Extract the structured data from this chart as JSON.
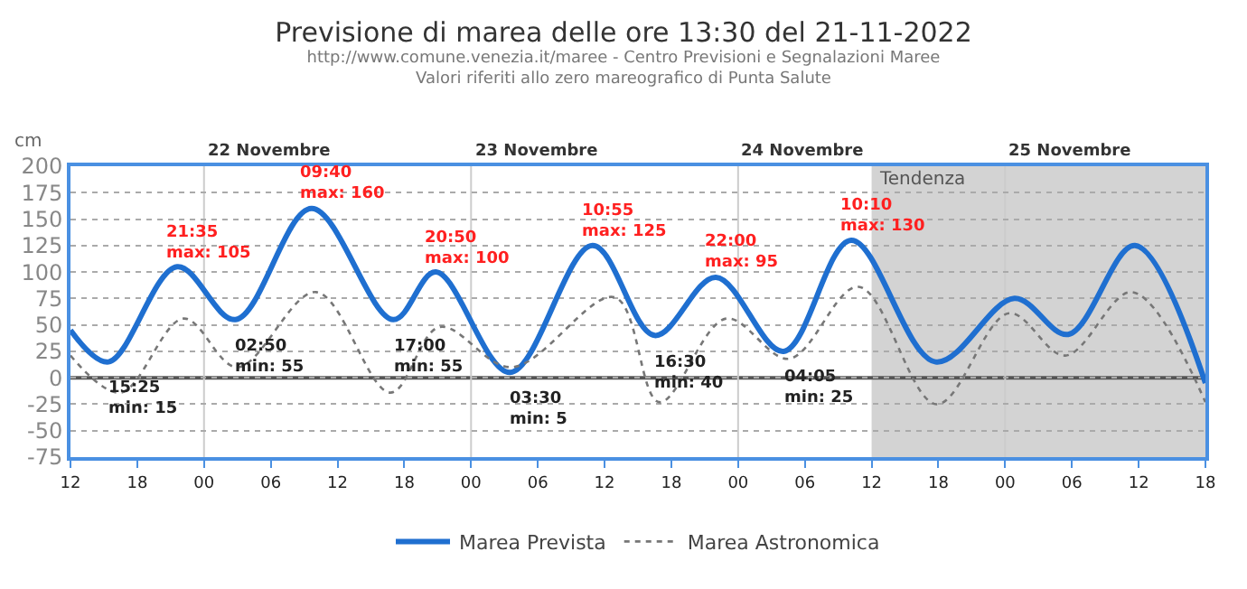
{
  "chart_data": {
    "type": "line",
    "title": "Previsione di marea delle ore 13:30 del 21-11-2022",
    "subtitle": "http://www.comune.venezia.it/maree - Centro Previsioni e Segnalazioni Maree\nValori riferiti allo zero mareografico di Punta Salute",
    "ylabel": "cm",
    "series": [
      {
        "name": "Marea Prevista",
        "color": "#1f6fd0",
        "line_style": "solid",
        "x": [
          "2022-11-21T12:00",
          "2022-11-21T15:25",
          "2022-11-21T21:35",
          "2022-11-22T02:50",
          "2022-11-22T09:40",
          "2022-11-22T17:00",
          "2022-11-22T20:50",
          "2022-11-23T03:30",
          "2022-11-23T10:55",
          "2022-11-23T16:30",
          "2022-11-23T22:00",
          "2022-11-24T04:05",
          "2022-11-24T10:10",
          "2022-11-24T17:45",
          "2022-11-25T00:50",
          "2022-11-25T05:40",
          "2022-11-25T11:40",
          "2022-11-25T18:00"
        ],
        "values": [
          45,
          15,
          105,
          55,
          160,
          55,
          100,
          5,
          125,
          40,
          95,
          25,
          130,
          15,
          75,
          41,
          125,
          -5
        ]
      },
      {
        "name": "Marea Astronomica",
        "color": "#777777",
        "line_style": "dotted",
        "x": [
          "2022-11-21T12:00",
          "2022-11-21T16:30",
          "2022-11-21T22:10",
          "2022-11-22T03:00",
          "2022-11-22T10:05",
          "2022-11-22T16:45",
          "2022-11-22T21:10",
          "2022-11-23T03:40",
          "2022-11-23T12:55",
          "2022-11-23T16:55",
          "2022-11-23T22:55",
          "2022-11-24T04:35",
          "2022-11-24T10:50",
          "2022-11-24T17:50",
          "2022-11-25T00:20",
          "2022-11-25T05:25",
          "2022-11-25T11:25",
          "2022-11-25T18:00"
        ],
        "values": [
          21,
          -14,
          56,
          10,
          81,
          -14,
          48,
          10,
          76,
          -23,
          56,
          18,
          86,
          -25,
          61,
          21,
          81,
          -23
        ]
      }
    ],
    "xlim": [
      "2022-11-21T12:00",
      "2022-11-25T18:00"
    ],
    "xticks": [
      {
        "value": "2022-11-21T12:00",
        "label": "12"
      },
      {
        "value": "2022-11-21T18:00",
        "label": "18"
      },
      {
        "value": "2022-11-22T00:00",
        "label": "00"
      },
      {
        "value": "2022-11-22T06:00",
        "label": "06"
      },
      {
        "value": "2022-11-22T12:00",
        "label": "12"
      },
      {
        "value": "2022-11-22T18:00",
        "label": "18"
      },
      {
        "value": "2022-11-23T00:00",
        "label": "00"
      },
      {
        "value": "2022-11-23T06:00",
        "label": "06"
      },
      {
        "value": "2022-11-23T12:00",
        "label": "12"
      },
      {
        "value": "2022-11-23T18:00",
        "label": "18"
      },
      {
        "value": "2022-11-24T00:00",
        "label": "00"
      },
      {
        "value": "2022-11-24T06:00",
        "label": "06"
      },
      {
        "value": "2022-11-24T12:00",
        "label": "12"
      },
      {
        "value": "2022-11-24T18:00",
        "label": "18"
      },
      {
        "value": "2022-11-25T00:00",
        "label": "00"
      },
      {
        "value": "2022-11-25T06:00",
        "label": "06"
      },
      {
        "value": "2022-11-25T12:00",
        "label": "12"
      },
      {
        "value": "2022-11-25T18:00",
        "label": "18"
      }
    ],
    "ylim": [
      -75,
      200
    ],
    "yticks": [
      -75,
      -50,
      -25,
      0,
      25,
      50,
      75,
      100,
      125,
      150,
      175,
      200
    ],
    "grid": "y",
    "legend": "bottom",
    "marker": "none",
    "ref_lines": [
      {
        "axis": "y",
        "value": 0,
        "color": "#555555"
      },
      {
        "axis": "x",
        "value": "2022-11-22T00:00",
        "label": "22 Novembre",
        "color": "#cccccc"
      },
      {
        "axis": "x",
        "value": "2022-11-23T00:00",
        "label": "23 Novembre",
        "color": "#cccccc"
      },
      {
        "axis": "x",
        "value": "2022-11-24T00:00",
        "label": "24 Novembre",
        "color": "#cccccc"
      },
      {
        "axis": "x",
        "value": "2022-11-25T00:00",
        "label": "25 Novembre",
        "color": "#cccccc"
      }
    ],
    "bands": [
      {
        "axis": "x",
        "from": "2022-11-24T12:00",
        "to": "2022-11-25T18:00",
        "label": "Tendenza",
        "color": "#d3d3d3"
      }
    ],
    "annotations": [
      {
        "text": "15:25\nmin: 15",
        "x": "2022-11-21T15:25",
        "y": 15
      },
      {
        "text": "21:35\nmax: 105",
        "x": "2022-11-21T21:35",
        "y": 105
      },
      {
        "text": "02:50\nmin: 55",
        "x": "2022-11-22T02:50",
        "y": 55
      },
      {
        "text": "09:40\nmax: 160",
        "x": "2022-11-22T09:40",
        "y": 160
      },
      {
        "text": "17:00\nmin: 55",
        "x": "2022-11-22T17:00",
        "y": 55
      },
      {
        "text": "20:50\nmax: 100",
        "x": "2022-11-22T20:50",
        "y": 100
      },
      {
        "text": "03:30\nmin: 5",
        "x": "2022-11-23T03:30",
        "y": 5
      },
      {
        "text": "10:55\nmax: 125",
        "x": "2022-11-23T10:55",
        "y": 125
      },
      {
        "text": "16:30\nmin: 40",
        "x": "2022-11-23T16:30",
        "y": 40
      },
      {
        "text": "22:00\nmax: 95",
        "x": "2022-11-23T22:00",
        "y": 95
      },
      {
        "text": "04:05\nmin: 25",
        "x": "2022-11-24T04:05",
        "y": 25
      },
      {
        "text": "10:10\nmax: 130",
        "x": "2022-11-24T10:10",
        "y": 130
      }
    ]
  }
}
